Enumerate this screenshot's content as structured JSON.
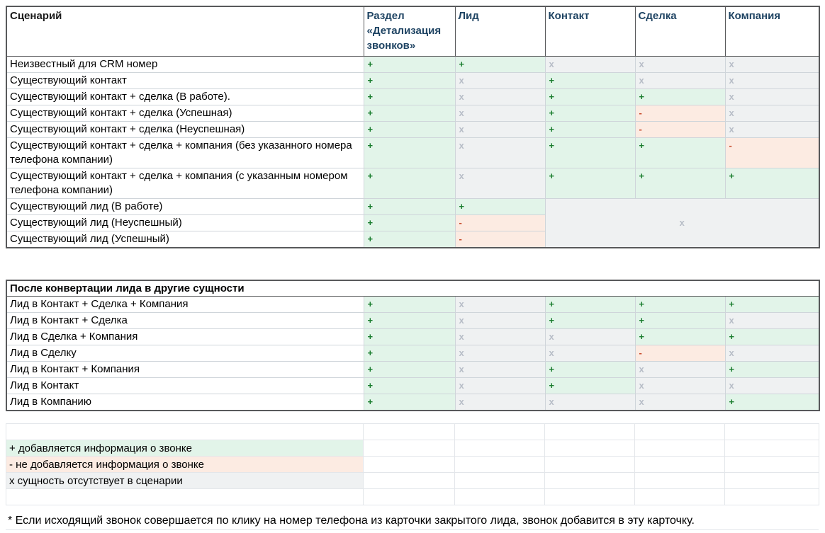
{
  "colors": {
    "plus_bg": "#e2f4e9",
    "minus_bg": "#fcebe2",
    "absent_bg": "#eff1f2",
    "plus_fg": "#1a7d2e",
    "minus_fg": "#c6492b",
    "absent_fg": "#b7bdc7",
    "header_fg": "#1f4463",
    "scenario_header_fg": "#1a1a1a",
    "table_border": "#58595b",
    "grid_line": "#cfd5da",
    "outer_grid_line": "#e3e6ea"
  },
  "columns": [
    "Сценарий",
    "Раздел «Детализация звонков»",
    "Лид",
    "Контакт",
    "Сделка",
    "Компания"
  ],
  "table1": {
    "rows": [
      {
        "label": "Неизвестный для CRM номер",
        "cells": [
          "+",
          "+",
          "x",
          "x",
          "x"
        ]
      },
      {
        "label": "Существующий контакт",
        "cells": [
          "+",
          "x",
          "+",
          "x",
          "x"
        ]
      },
      {
        "label": "Существующий контакт + сделка (В работе).",
        "cells": [
          "+",
          "x",
          "+",
          "+",
          "x"
        ]
      },
      {
        "label": "Существующий контакт + сделка (Успешная)",
        "cells": [
          "+",
          "x",
          "+",
          "-",
          "x"
        ]
      },
      {
        "label": "Существующий контакт + сделка (Неуспешная)",
        "cells": [
          "+",
          "x",
          "+",
          "-",
          "x"
        ]
      },
      {
        "label": "Существующий контакт + сделка + компания (без указанного номера телефона компании)",
        "cells": [
          "+",
          "x",
          "+",
          "+",
          "-"
        ]
      },
      {
        "label": "Существующий контакт + сделка + компания (с указанным номером телефона компании)",
        "cells": [
          "+",
          "x",
          "+",
          "+",
          "+"
        ]
      },
      {
        "label": "Существующий лид (В работе)",
        "cells": [
          "+",
          "+"
        ],
        "merged": {
          "symbol": "x",
          "rowspan": 3,
          "colspan": 3
        }
      },
      {
        "label": "Существующий лид (Неуспешный)",
        "cells": [
          "+",
          "-"
        ]
      },
      {
        "label": "Существующий лид (Успешный)",
        "cells": [
          "+",
          "-"
        ]
      }
    ]
  },
  "section2": {
    "title": "После конвертации лида в другие сущности",
    "rows": [
      {
        "label": "Лид в Контакт + Сделка + Компания",
        "cells": [
          "+",
          "x",
          "+",
          "+",
          "+"
        ]
      },
      {
        "label": "Лид в Контакт + Сделка",
        "cells": [
          "+",
          "x",
          "+",
          "+",
          "x"
        ]
      },
      {
        "label": "Лид в Сделка + Компания",
        "cells": [
          "+",
          "x",
          "x",
          "+",
          "+"
        ]
      },
      {
        "label": "Лид в Сделку",
        "cells": [
          "+",
          "x",
          "x",
          "-",
          "x"
        ]
      },
      {
        "label": "Лид в Контакт + Компания",
        "cells": [
          "+",
          "x",
          "+",
          "x",
          "+"
        ]
      },
      {
        "label": "Лид в Контакт",
        "cells": [
          "+",
          "x",
          "+",
          "x",
          "x"
        ]
      },
      {
        "label": "Лид в Компанию",
        "cells": [
          "+",
          "x",
          "x",
          "x",
          "+"
        ]
      }
    ]
  },
  "legend": {
    "items": [
      {
        "text": "+ добавляется информация о звонке",
        "type": "plus"
      },
      {
        "text": "- не добавляется информация о звонке",
        "type": "minus"
      },
      {
        "text": "x сущность отсутствует в сценарии",
        "type": "absent"
      }
    ]
  },
  "footnote": "* Если исходящий звонок совершается по клику на номер телефона из карточки закрытого лида, звонок добавится в эту карточку."
}
